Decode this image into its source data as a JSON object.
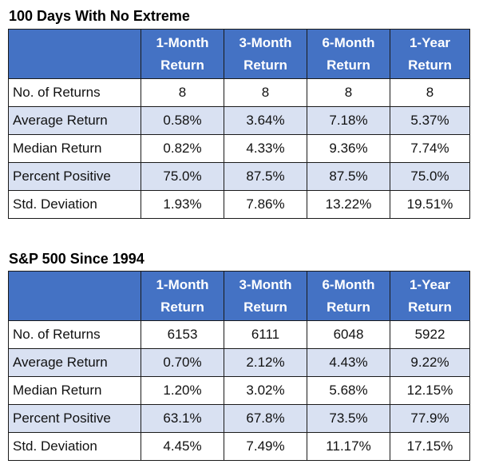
{
  "tables": [
    {
      "title": "100 Days With No Extreme",
      "columns": [
        {
          "line1": "1-Month",
          "line2": "Return"
        },
        {
          "line1": "3-Month",
          "line2": "Return"
        },
        {
          "line1": "6-Month",
          "line2": "Return"
        },
        {
          "line1": "1-Year",
          "line2": "Return"
        }
      ],
      "rows": [
        {
          "label": "No. of Returns",
          "values": [
            "8",
            "8",
            "8",
            "8"
          ]
        },
        {
          "label": "Average Return",
          "values": [
            "0.58%",
            "3.64%",
            "7.18%",
            "5.37%"
          ]
        },
        {
          "label": "Median Return",
          "values": [
            "0.82%",
            "4.33%",
            "9.36%",
            "7.74%"
          ]
        },
        {
          "label": "Percent Positive",
          "values": [
            "75.0%",
            "87.5%",
            "87.5%",
            "75.0%"
          ]
        },
        {
          "label": "Std. Deviation",
          "values": [
            "1.93%",
            "7.86%",
            "13.22%",
            "19.51%"
          ]
        }
      ]
    },
    {
      "title": "S&P 500 Since 1994",
      "columns": [
        {
          "line1": "1-Month",
          "line2": "Return"
        },
        {
          "line1": "3-Month",
          "line2": "Return"
        },
        {
          "line1": "6-Month",
          "line2": "Return"
        },
        {
          "line1": "1-Year",
          "line2": "Return"
        }
      ],
      "rows": [
        {
          "label": "No. of Returns",
          "values": [
            "6153",
            "6111",
            "6048",
            "5922"
          ]
        },
        {
          "label": "Average Return",
          "values": [
            "0.70%",
            "2.12%",
            "4.43%",
            "9.22%"
          ]
        },
        {
          "label": "Median Return",
          "values": [
            "1.20%",
            "3.02%",
            "5.68%",
            "12.15%"
          ]
        },
        {
          "label": "Percent Positive",
          "values": [
            "63.1%",
            "67.8%",
            "73.5%",
            "77.9%"
          ]
        },
        {
          "label": "Std. Deviation",
          "values": [
            "4.45%",
            "7.49%",
            "11.17%",
            "17.15%"
          ]
        }
      ]
    }
  ],
  "colors": {
    "header_bg": "#4472c4",
    "header_text": "#ffffff",
    "shaded_row_bg": "#d9e1f2",
    "border": "#1a1a1a"
  }
}
